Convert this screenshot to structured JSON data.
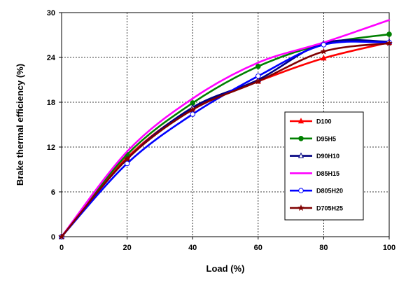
{
  "chart_data": {
    "type": "line",
    "title": "",
    "xlabel": "Load (%)",
    "ylabel": "Brake thermal efficiency (%)",
    "xlim": [
      0,
      100
    ],
    "ylim": [
      0,
      30
    ],
    "x_ticks": [
      "0",
      "20",
      "40",
      "60",
      "80",
      "100"
    ],
    "y_ticks": [
      "0",
      "6",
      "12",
      "18",
      "24",
      "30"
    ],
    "grid": true,
    "legend_position": "right-center",
    "x": [
      0,
      20,
      40,
      60,
      80,
      100
    ],
    "series": [
      {
        "name": "D100",
        "color": "#ff0000",
        "marker": "triangle",
        "values": [
          0,
          10.6,
          17.2,
          20.8,
          23.9,
          26.0
        ]
      },
      {
        "name": "D95H5",
        "color": "#008000",
        "marker": "circle-filled",
        "values": [
          0,
          11.0,
          17.9,
          22.8,
          25.8,
          27.1
        ]
      },
      {
        "name": "D90H10",
        "color": "#000080",
        "marker": "triangle-open",
        "values": [
          0,
          10.4,
          17.3,
          21.0,
          25.9,
          26.1
        ]
      },
      {
        "name": "D85H15",
        "color": "#ff00ff",
        "marker": "none",
        "values": [
          0,
          11.4,
          18.5,
          23.3,
          26.0,
          29.0
        ]
      },
      {
        "name": "D805H20",
        "color": "#0000ff",
        "marker": "circle-open",
        "values": [
          0,
          9.8,
          16.4,
          21.5,
          25.7,
          26.0
        ]
      },
      {
        "name": "D705H25",
        "color": "#800000",
        "marker": "star",
        "values": [
          0,
          10.4,
          17.0,
          20.8,
          24.8,
          25.9
        ]
      }
    ]
  }
}
